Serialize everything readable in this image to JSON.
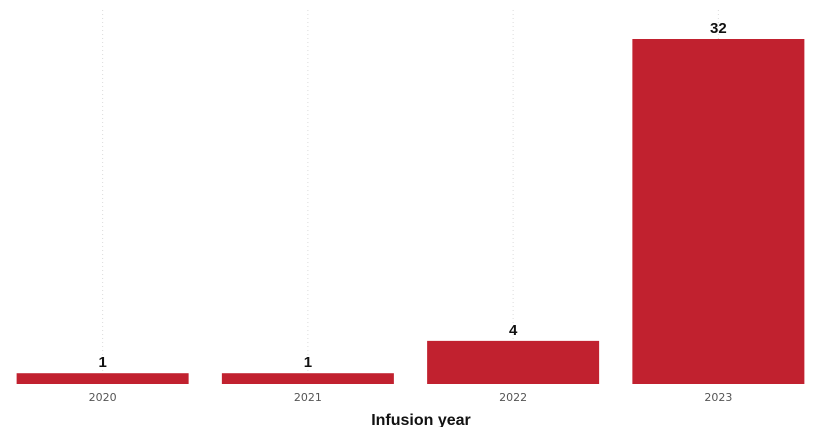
{
  "chart_data": {
    "type": "bar",
    "categories": [
      "2020",
      "2021",
      "2022",
      "2023"
    ],
    "values": [
      1,
      1,
      4,
      32
    ],
    "data_labels": [
      "1",
      "1",
      "4",
      "32"
    ],
    "title": "",
    "xlabel": "Infusion year",
    "ylabel": "",
    "ylim": [
      0,
      32
    ],
    "grid": "vertical dotted",
    "legend": "none",
    "bar_color": "#c1212f"
  }
}
